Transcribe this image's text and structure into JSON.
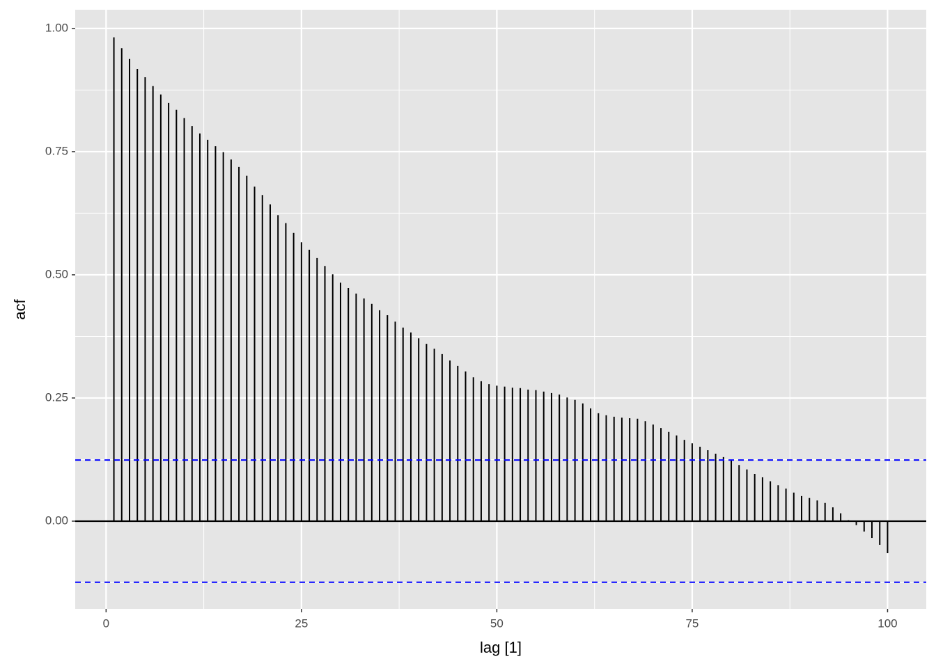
{
  "chart_data": {
    "type": "acf",
    "xlabel": "lag [1]",
    "ylabel": "acf",
    "x": [
      1,
      2,
      3,
      4,
      5,
      6,
      7,
      8,
      9,
      10,
      11,
      12,
      13,
      14,
      15,
      16,
      17,
      18,
      19,
      20,
      21,
      22,
      23,
      24,
      25,
      26,
      27,
      28,
      29,
      30,
      31,
      32,
      33,
      34,
      35,
      36,
      37,
      38,
      39,
      40,
      41,
      42,
      43,
      44,
      45,
      46,
      47,
      48,
      49,
      50,
      51,
      52,
      53,
      54,
      55,
      56,
      57,
      58,
      59,
      60,
      61,
      62,
      63,
      64,
      65,
      66,
      67,
      68,
      69,
      70,
      71,
      72,
      73,
      74,
      75,
      76,
      77,
      78,
      79,
      80,
      81,
      82,
      83,
      84,
      85,
      86,
      87,
      88,
      89,
      90,
      91,
      92,
      93,
      94,
      95,
      96,
      97,
      98,
      99,
      100
    ],
    "values": [
      0.982,
      0.96,
      0.938,
      0.918,
      0.901,
      0.883,
      0.866,
      0.849,
      0.835,
      0.818,
      0.802,
      0.787,
      0.774,
      0.761,
      0.749,
      0.734,
      0.719,
      0.701,
      0.679,
      0.662,
      0.643,
      0.621,
      0.605,
      0.585,
      0.566,
      0.551,
      0.534,
      0.518,
      0.501,
      0.484,
      0.473,
      0.462,
      0.452,
      0.441,
      0.428,
      0.418,
      0.405,
      0.393,
      0.383,
      0.371,
      0.36,
      0.35,
      0.339,
      0.326,
      0.315,
      0.304,
      0.292,
      0.284,
      0.278,
      0.275,
      0.273,
      0.271,
      0.27,
      0.267,
      0.266,
      0.263,
      0.26,
      0.257,
      0.251,
      0.246,
      0.239,
      0.229,
      0.219,
      0.215,
      0.212,
      0.21,
      0.209,
      0.208,
      0.203,
      0.196,
      0.189,
      0.181,
      0.174,
      0.165,
      0.158,
      0.151,
      0.144,
      0.137,
      0.13,
      0.124,
      0.114,
      0.105,
      0.096,
      0.089,
      0.081,
      0.073,
      0.066,
      0.058,
      0.051,
      0.047,
      0.042,
      0.037,
      0.028,
      0.016,
      0.002,
      -0.008,
      -0.021,
      -0.034,
      -0.048,
      -0.065
    ],
    "color": "#000000",
    "ci_lines": [
      0.124,
      -0.124
    ],
    "ci_color": "#0000ff",
    "xlim": [
      -3.95,
      104.95
    ],
    "xticks": [
      0,
      25,
      50,
      75,
      100
    ],
    "ylim": [
      -0.178,
      1.038
    ],
    "yticks": [
      {
        "value": 0,
        "label": "0.00"
      },
      {
        "value": 0.25,
        "label": "0.25"
      },
      {
        "value": 0.5,
        "label": "0.50"
      },
      {
        "value": 0.75,
        "label": "0.75"
      },
      {
        "value": 1,
        "label": "1.00"
      }
    ],
    "grid": true
  }
}
